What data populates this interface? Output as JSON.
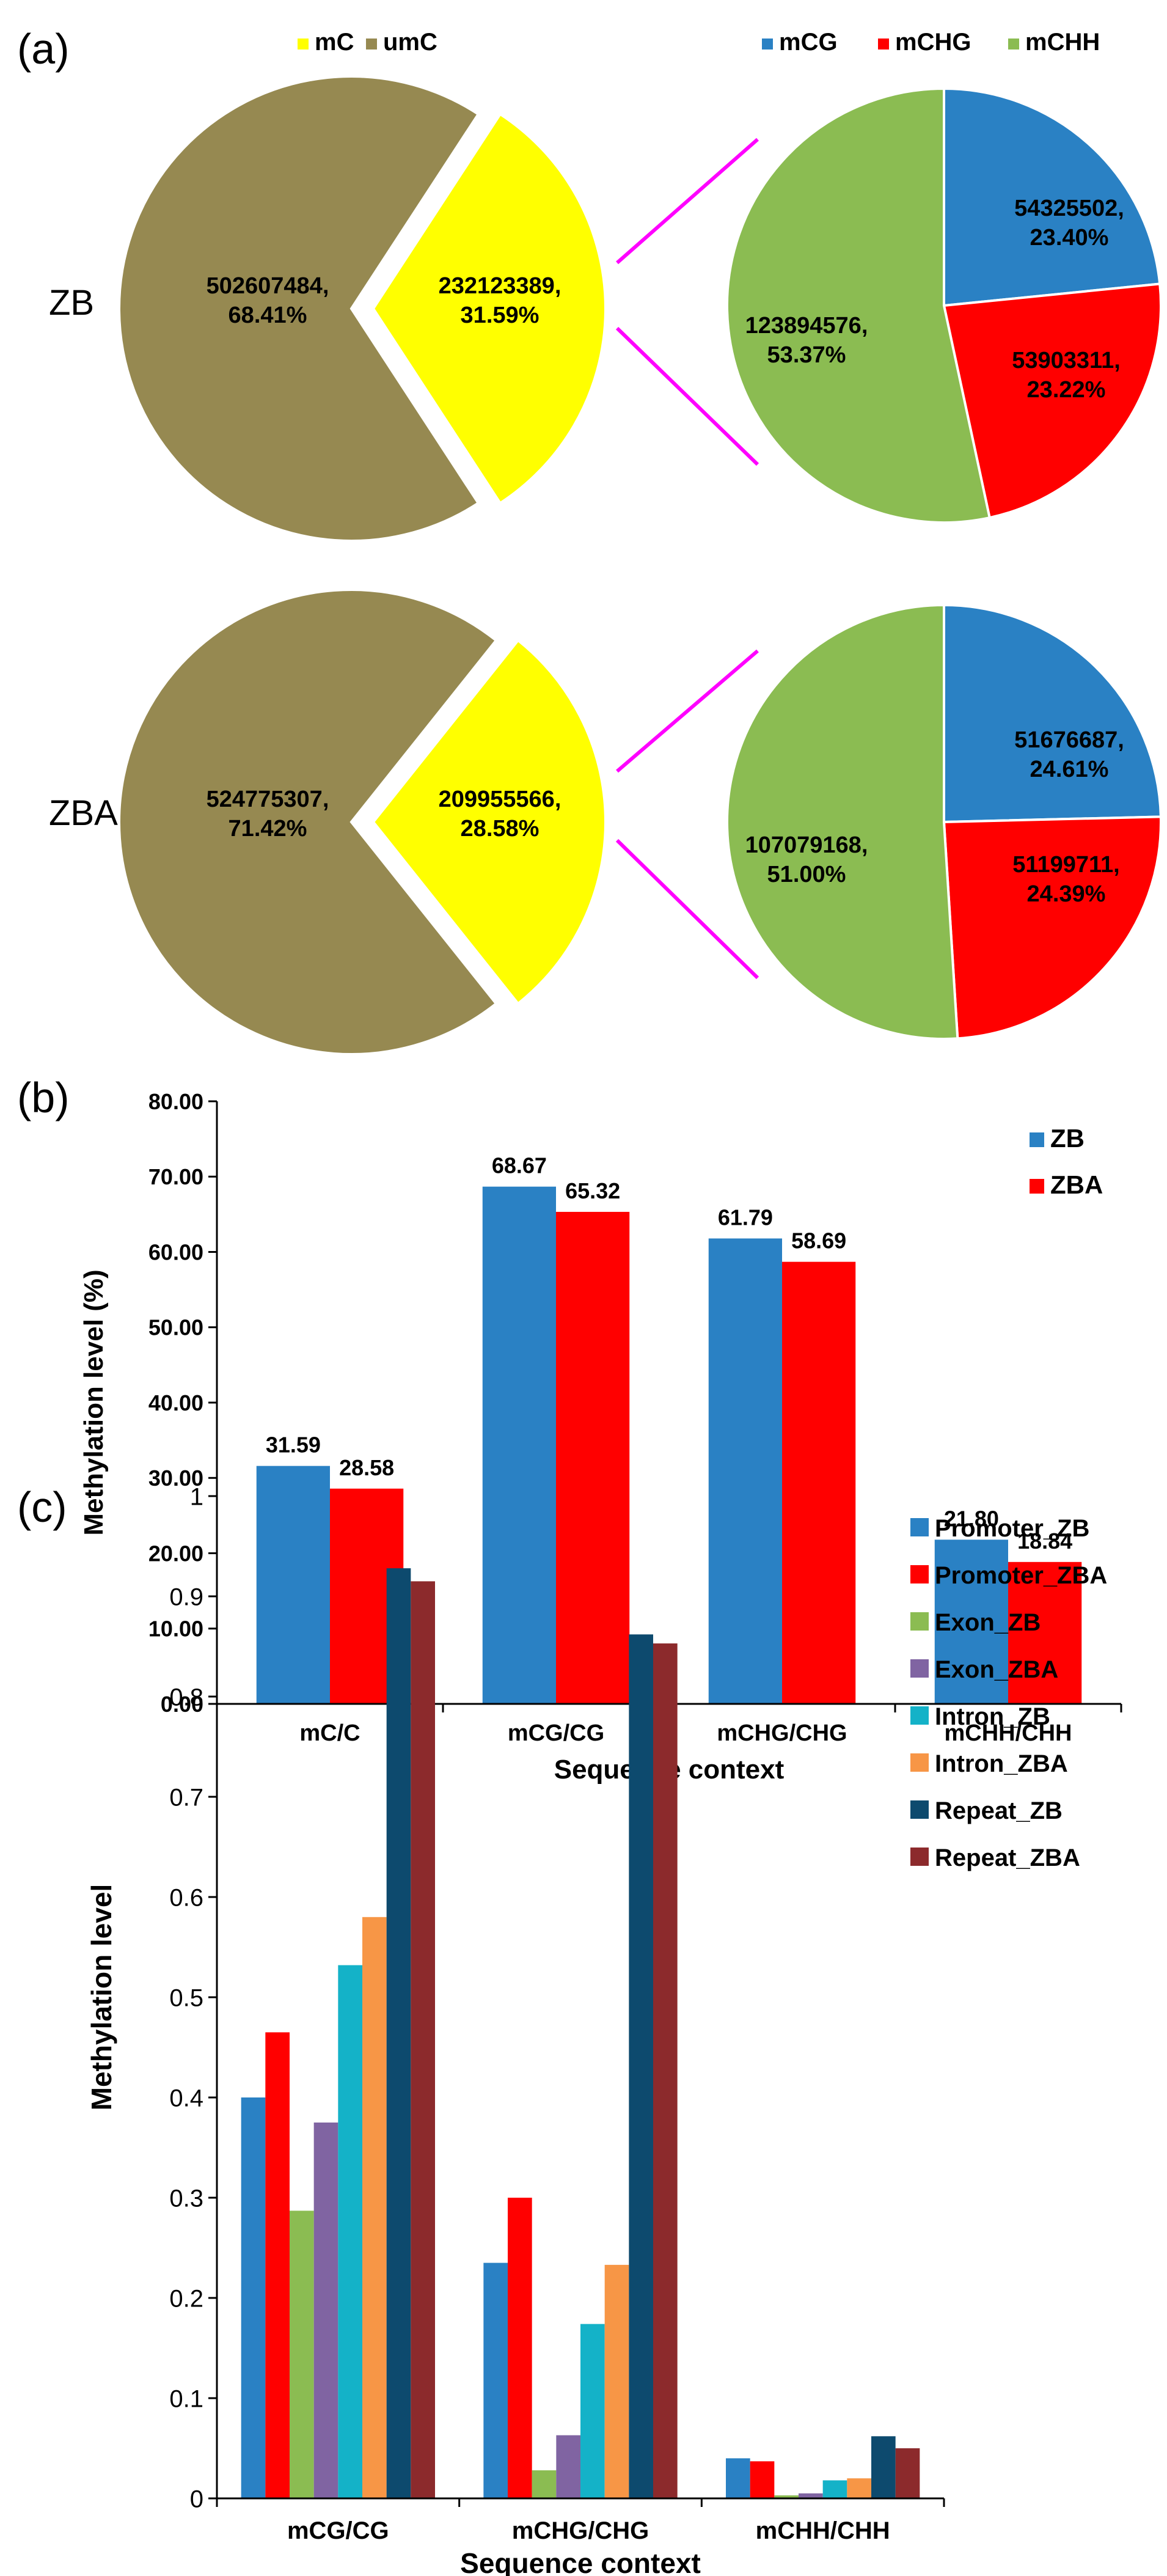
{
  "figure": {
    "panels": [
      {
        "label": "(a)"
      },
      {
        "label": "(b)"
      },
      {
        "label": "(c)"
      }
    ]
  },
  "chart_data": [
    {
      "type": "pie",
      "panel": "(a)",
      "row_label": "ZB",
      "legend": [
        {
          "name": "mC",
          "color": "#ffff00"
        },
        {
          "name": "umC",
          "color": "#968951"
        }
      ],
      "slices": [
        {
          "name": "mC",
          "value": 232123389,
          "percent": "31.59%",
          "label": "232123389,\n31.59%",
          "color": "#ffff00",
          "exploded": true
        },
        {
          "name": "umC",
          "value": 502607484,
          "percent": "68.41%",
          "label": "502607484,\n68.41%",
          "color": "#968951"
        }
      ]
    },
    {
      "type": "pie",
      "panel": "(a)",
      "row_label": "ZB",
      "legend": [
        {
          "name": "mCG",
          "color": "#2a81c4"
        },
        {
          "name": "mCHG",
          "color": "#ff0000"
        },
        {
          "name": "mCHH",
          "color": "#8bbc52"
        }
      ],
      "slices": [
        {
          "name": "mCG",
          "value": 54325502,
          "percent": "23.40%",
          "label": "54325502,\n23.40%",
          "color": "#2a81c4"
        },
        {
          "name": "mCHG",
          "value": 53903311,
          "percent": "23.22%",
          "label": "53903311,\n23.22%",
          "color": "#ff0000"
        },
        {
          "name": "mCHH",
          "value": 123894576,
          "percent": "53.37%",
          "label": "123894576,\n53.37%",
          "color": "#8bbc52"
        }
      ]
    },
    {
      "type": "pie",
      "panel": "(a)",
      "row_label": "ZBA",
      "slices": [
        {
          "name": "mC",
          "value": 209955566,
          "percent": "28.58%",
          "label": "209955566,\n28.58%",
          "color": "#ffff00",
          "exploded": true
        },
        {
          "name": "umC",
          "value": 524775307,
          "percent": "71.42%",
          "label": "524775307,\n71.42%",
          "color": "#968951"
        }
      ]
    },
    {
      "type": "pie",
      "panel": "(a)",
      "row_label": "ZBA",
      "slices": [
        {
          "name": "mCG",
          "value": 51676687,
          "percent": "24.61%",
          "label": "51676687,\n24.61%",
          "color": "#2a81c4"
        },
        {
          "name": "mCHG",
          "value": 51199711,
          "percent": "24.39%",
          "label": "51199711,\n24.39%",
          "color": "#ff0000"
        },
        {
          "name": "mCHH",
          "value": 107079168,
          "percent": "51.00%",
          "label": "107079168,\n51.00%",
          "color": "#8bbc52"
        }
      ]
    },
    {
      "type": "bar",
      "panel": "(b)",
      "categories": [
        "mC/C",
        "mCG/CG",
        "mCHG/CHG",
        "mCHH/CHH"
      ],
      "series": [
        {
          "name": "ZB",
          "color": "#2a81c4",
          "values": [
            31.59,
            68.67,
            61.79,
            21.8
          ],
          "labels": [
            "31.59",
            "68.67",
            "61.79",
            "21.80"
          ]
        },
        {
          "name": "ZBA",
          "color": "#ff0000",
          "values": [
            28.58,
            65.32,
            58.69,
            18.84
          ],
          "labels": [
            "28.58",
            "65.32",
            "58.69",
            "18.84"
          ]
        }
      ],
      "xlabel": "Sequence context",
      "ylabel": "Methylation level (%)",
      "ylim": [
        0,
        80
      ],
      "yticks": [
        "0.00",
        "10.00",
        "20.00",
        "30.00",
        "40.00",
        "50.00",
        "60.00",
        "70.00",
        "80.00"
      ],
      "legend_position": "top-right",
      "grid": false
    },
    {
      "type": "bar",
      "panel": "(c)",
      "categories": [
        "mCG/CG",
        "mCHG/CHG",
        "mCHH/CHH"
      ],
      "series": [
        {
          "name": "Promoter_ZB",
          "color": "#2a81c4",
          "values": [
            0.4,
            0.235,
            0.04
          ]
        },
        {
          "name": "Promoter_ZBA",
          "color": "#ff0000",
          "values": [
            0.465,
            0.3,
            0.037
          ]
        },
        {
          "name": "Exon_ZB",
          "color": "#8bbc52",
          "values": [
            0.287,
            0.028,
            0.003
          ]
        },
        {
          "name": "Exon_ZBA",
          "color": "#8064a2",
          "values": [
            0.375,
            0.063,
            0.005
          ]
        },
        {
          "name": "Intron_ZB",
          "color": "#14b2c8",
          "values": [
            0.532,
            0.174,
            0.018
          ]
        },
        {
          "name": "Intron_ZBA",
          "color": "#f79646",
          "values": [
            0.58,
            0.233,
            0.02
          ]
        },
        {
          "name": "Repeat_ZB",
          "color": "#0d4a6e",
          "values": [
            0.928,
            0.862,
            0.062
          ]
        },
        {
          "name": "Repeat_ZBA",
          "color": "#8c2a2c",
          "values": [
            0.915,
            0.853,
            0.05
          ]
        }
      ],
      "xlabel": "Sequence context",
      "ylabel": "Methylation level",
      "ylim": [
        0,
        1
      ],
      "yticks": [
        "0",
        "0.1",
        "0.2",
        "0.3",
        "0.4",
        "0.5",
        "0.6",
        "0.7",
        "0.8",
        "0.9",
        "1"
      ],
      "legend_position": "right",
      "grid": false
    }
  ]
}
